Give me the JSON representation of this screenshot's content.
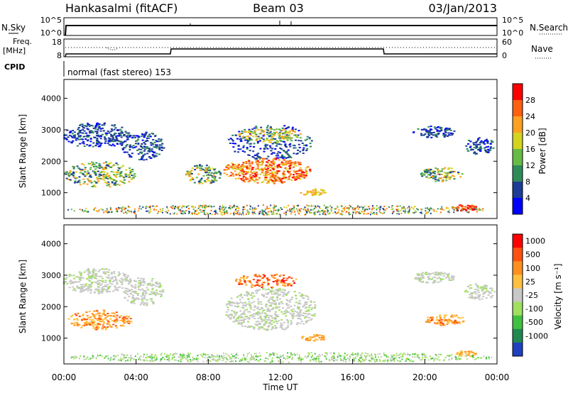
{
  "header": {
    "station": "Hankasalmi (fitACF)",
    "beam": "Beam 03",
    "date": "03/Jan/2013"
  },
  "noise_panel": {
    "left_label": "N.Sky",
    "right_label": "N.Search",
    "ticks": [
      "10^5",
      "10^0"
    ]
  },
  "freq_panel": {
    "left_label_1": "Freq.",
    "left_label_2": "[MHz]",
    "left_ticks": [
      "18",
      "8"
    ],
    "right_label": "Nave",
    "right_ticks": [
      "60",
      "0"
    ]
  },
  "cpid_label": "CPID",
  "mode_text": "normal (fast stereo) 153",
  "chart_data": [
    {
      "type": "heatmap",
      "name": "power",
      "ylabel": "Slant Range [km]",
      "ylim": [
        180,
        4600
      ],
      "yticks": [
        "1000",
        "2000",
        "3000",
        "4000"
      ],
      "colorbar_label": "Power [dB]",
      "colorbar_ticks": [
        "4",
        "8",
        "12",
        "16",
        "20",
        "24",
        "28"
      ],
      "colors": [
        "#0000ff",
        "#1c3c96",
        "#2e8b57",
        "#66bb44",
        "#d4d420",
        "#ffa020",
        "#ff6010",
        "#ff0000"
      ]
    },
    {
      "type": "heatmap",
      "name": "velocity",
      "ylabel": "Slant Range [km]",
      "ylim": [
        180,
        4600
      ],
      "yticks": [
        "1000",
        "2000",
        "3000",
        "4000"
      ],
      "colorbar_label": "Velocity [m s⁻¹]",
      "colorbar_ticks": [
        "1000",
        "500",
        "100",
        "25",
        "-25",
        "-100",
        "-500",
        "-1000"
      ],
      "colors": [
        "#2040c0",
        "#208850",
        "#40c040",
        "#a0e060",
        "#c8c8c8",
        "#ffc040",
        "#ff9020",
        "#ff5010",
        "#ff0000"
      ]
    }
  ],
  "time_axis": {
    "ticks": [
      "00:00",
      "04:00",
      "08:00",
      "12:00",
      "16:00",
      "20:00",
      "00:00"
    ],
    "label": "Time UT"
  }
}
